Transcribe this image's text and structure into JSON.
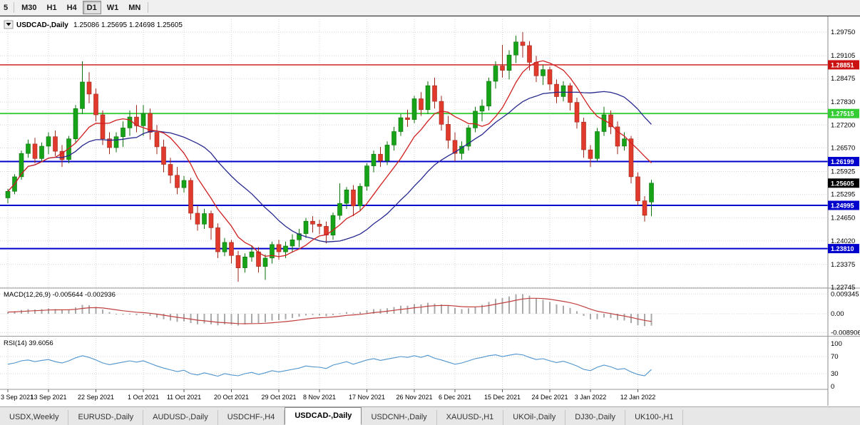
{
  "toolbar": {
    "buttons": [
      {
        "label": "5",
        "active": false
      },
      {
        "label": "M30",
        "active": false
      },
      {
        "label": "H1",
        "active": false
      },
      {
        "label": "H4",
        "active": false
      },
      {
        "label": "D1",
        "active": true
      },
      {
        "label": "W1",
        "active": false
      },
      {
        "label": "MN",
        "active": false
      }
    ]
  },
  "chart": {
    "header": {
      "symbol": "USDCAD-,Daily",
      "ohlc": "1.25086 1.25695 1.24698 1.25605"
    },
    "price_axis_labels": [
      "1.29750",
      "1.29105",
      "1.28475",
      "1.27830",
      "1.27200",
      "1.26570",
      "1.25925",
      "1.25295",
      "1.24650",
      "1.24020",
      "1.23375",
      "1.22745"
    ],
    "levels": [
      {
        "label": "1.28851",
        "price": 1.28851,
        "color": "#cc1111",
        "line": true,
        "width": 1.4
      },
      {
        "label": "1.27515",
        "price": 1.27515,
        "color": "#33cc33",
        "line": true,
        "width": 1.8
      },
      {
        "label": "1.26199",
        "price": 1.26199,
        "color": "#0000cc",
        "line": true,
        "width": 2
      },
      {
        "label": "1.25605",
        "price": 1.25605,
        "color": "#000000",
        "line": false,
        "width": 0
      },
      {
        "label": "1.24995",
        "price": 1.24995,
        "color": "#0000cc",
        "line": true,
        "width": 2
      },
      {
        "label": "1.23810",
        "price": 1.2381,
        "color": "#0000cc",
        "line": true,
        "width": 2
      }
    ],
    "colors": {
      "up": "#17a317",
      "up_stroke": "#0c720c",
      "down": "#e13a2c",
      "down_stroke": "#9e271c",
      "ma_fast": "#d02020",
      "ma_slow": "#28288f",
      "grid": "#d6d6d6",
      "macd_hist": "#a9a9a9",
      "macd_signal": "#c04040",
      "rsi": "#4f94cd",
      "separator": "#9a9a9a",
      "axis_border": "#888888"
    }
  },
  "chart_data": {
    "type": "candlestick",
    "symbol": "USDCAD-,Daily",
    "ohlc_current": {
      "open": "1.25086",
      "high": "1.25695",
      "low": "1.24698",
      "close": "1.25605"
    },
    "price_axis_range": [
      1.22745,
      1.2975
    ],
    "candles": [
      [
        1.252,
        1.2545,
        1.2505,
        1.2538
      ],
      [
        1.2538,
        1.2585,
        1.253,
        1.2578
      ],
      [
        1.2578,
        1.265,
        1.257,
        1.2642
      ],
      [
        1.2642,
        1.268,
        1.263,
        1.2668
      ],
      [
        1.2668,
        1.2685,
        1.2615,
        1.2628
      ],
      [
        1.2628,
        1.2672,
        1.2618,
        1.2662
      ],
      [
        1.2662,
        1.27,
        1.264,
        1.2688
      ],
      [
        1.2688,
        1.2705,
        1.2635,
        1.2648
      ],
      [
        1.2648,
        1.2665,
        1.2605,
        1.2625
      ],
      [
        1.2625,
        1.269,
        1.2615,
        1.2682
      ],
      [
        1.2682,
        1.2775,
        1.267,
        1.2765
      ],
      [
        1.2765,
        1.2895,
        1.275,
        1.2838
      ],
      [
        1.2838,
        1.2865,
        1.278,
        1.2805
      ],
      [
        1.2805,
        1.282,
        1.273,
        1.2748
      ],
      [
        1.2748,
        1.276,
        1.2665,
        1.2682
      ],
      [
        1.2682,
        1.27,
        1.264,
        1.2658
      ],
      [
        1.2658,
        1.27,
        1.2645,
        1.2688
      ],
      [
        1.2688,
        1.273,
        1.266,
        1.2712
      ],
      [
        1.2712,
        1.276,
        1.269,
        1.2742
      ],
      [
        1.2742,
        1.2775,
        1.27,
        1.2718
      ],
      [
        1.2718,
        1.2775,
        1.269,
        1.2752
      ],
      [
        1.2752,
        1.2765,
        1.268,
        1.27
      ],
      [
        1.27,
        1.272,
        1.264,
        1.266
      ],
      [
        1.266,
        1.268,
        1.259,
        1.2612
      ],
      [
        1.2612,
        1.263,
        1.256,
        1.2582
      ],
      [
        1.2582,
        1.2605,
        1.253,
        1.2548
      ],
      [
        1.2548,
        1.258,
        1.2535,
        1.2568
      ],
      [
        1.2568,
        1.2575,
        1.246,
        1.2478
      ],
      [
        1.2478,
        1.25,
        1.243,
        1.2448
      ],
      [
        1.2448,
        1.249,
        1.2435,
        1.2477
      ],
      [
        1.2477,
        1.2485,
        1.2405,
        1.2438
      ],
      [
        1.2438,
        1.245,
        1.2355,
        1.2372
      ],
      [
        1.2372,
        1.241,
        1.236,
        1.2398
      ],
      [
        1.2398,
        1.2405,
        1.234,
        1.2362
      ],
      [
        1.2362,
        1.2375,
        1.229,
        1.2328
      ],
      [
        1.2328,
        1.2368,
        1.2315,
        1.2358
      ],
      [
        1.2358,
        1.239,
        1.2345,
        1.2372
      ],
      [
        1.2372,
        1.2385,
        1.2315,
        1.2332
      ],
      [
        1.2332,
        1.2365,
        1.2295,
        1.2355
      ],
      [
        1.2355,
        1.24,
        1.234,
        1.2392
      ],
      [
        1.2392,
        1.2405,
        1.235,
        1.2372
      ],
      [
        1.2372,
        1.24,
        1.2355,
        1.2388
      ],
      [
        1.2388,
        1.242,
        1.237,
        1.2405
      ],
      [
        1.2405,
        1.2435,
        1.2385,
        1.2422
      ],
      [
        1.2422,
        1.2465,
        1.241,
        1.2456
      ],
      [
        1.2456,
        1.247,
        1.2425,
        1.2448
      ],
      [
        1.2448,
        1.246,
        1.242,
        1.2442
      ],
      [
        1.2442,
        1.2455,
        1.2395,
        1.2418
      ],
      [
        1.2418,
        1.248,
        1.2405,
        1.2472
      ],
      [
        1.2472,
        1.256,
        1.246,
        1.2505
      ],
      [
        1.2505,
        1.255,
        1.249,
        1.2542
      ],
      [
        1.2542,
        1.2555,
        1.247,
        1.2498
      ],
      [
        1.2498,
        1.256,
        1.2485,
        1.2552
      ],
      [
        1.2552,
        1.2615,
        1.254,
        1.2608
      ],
      [
        1.2608,
        1.265,
        1.259,
        1.264
      ],
      [
        1.264,
        1.266,
        1.2605,
        1.2622
      ],
      [
        1.2622,
        1.2675,
        1.261,
        1.2665
      ],
      [
        1.2665,
        1.2715,
        1.265,
        1.2702
      ],
      [
        1.2702,
        1.275,
        1.269,
        1.274
      ],
      [
        1.274,
        1.2762,
        1.2715,
        1.2735
      ],
      [
        1.2735,
        1.28,
        1.2725,
        1.2792
      ],
      [
        1.2792,
        1.281,
        1.2745,
        1.2762
      ],
      [
        1.2762,
        1.284,
        1.275,
        1.2828
      ],
      [
        1.2828,
        1.285,
        1.2765,
        1.2785
      ],
      [
        1.2785,
        1.28,
        1.2705,
        1.2722
      ],
      [
        1.2722,
        1.2745,
        1.2655,
        1.2678
      ],
      [
        1.2678,
        1.27,
        1.262,
        1.2642
      ],
      [
        1.2642,
        1.2675,
        1.2625,
        1.2662
      ],
      [
        1.2662,
        1.272,
        1.265,
        1.2712
      ],
      [
        1.2712,
        1.277,
        1.27,
        1.2758
      ],
      [
        1.2758,
        1.279,
        1.273,
        1.2772
      ],
      [
        1.2772,
        1.285,
        1.276,
        1.284
      ],
      [
        1.284,
        1.2895,
        1.282,
        1.2882
      ],
      [
        1.2882,
        1.294,
        1.285,
        1.287
      ],
      [
        1.287,
        1.2925,
        1.2845,
        1.2912
      ],
      [
        1.2912,
        1.2965,
        1.289,
        1.2948
      ],
      [
        1.2948,
        1.2975,
        1.2905,
        1.2938
      ],
      [
        1.2938,
        1.295,
        1.287,
        1.2892
      ],
      [
        1.2892,
        1.291,
        1.2838,
        1.2855
      ],
      [
        1.2855,
        1.2885,
        1.283,
        1.2872
      ],
      [
        1.2872,
        1.288,
        1.2815,
        1.2832
      ],
      [
        1.2832,
        1.2845,
        1.278,
        1.2798
      ],
      [
        1.2798,
        1.284,
        1.2785,
        1.2828
      ],
      [
        1.2828,
        1.2835,
        1.276,
        1.2782
      ],
      [
        1.2782,
        1.2795,
        1.271,
        1.2728
      ],
      [
        1.2728,
        1.274,
        1.263,
        1.2652
      ],
      [
        1.2652,
        1.2665,
        1.2605,
        1.2628
      ],
      [
        1.2628,
        1.2712,
        1.262,
        1.2702
      ],
      [
        1.2702,
        1.277,
        1.269,
        1.2748
      ],
      [
        1.2748,
        1.276,
        1.2695,
        1.2715
      ],
      [
        1.2715,
        1.273,
        1.264,
        1.2662
      ],
      [
        1.2662,
        1.27,
        1.265,
        1.2682
      ],
      [
        1.2682,
        1.269,
        1.256,
        1.2578
      ],
      [
        1.2578,
        1.259,
        1.25,
        1.2512
      ],
      [
        1.2512,
        1.2525,
        1.2455,
        1.2472
      ],
      [
        1.25086,
        1.25695,
        1.24698,
        1.25605
      ]
    ],
    "x_axis_labels": [
      {
        "i": 0,
        "label": "3 Sep 2021"
      },
      {
        "i": 6,
        "label": "13 Sep 2021"
      },
      {
        "i": 13,
        "label": "22 Sep 2021"
      },
      {
        "i": 20,
        "label": "1 Oct 2021"
      },
      {
        "i": 26,
        "label": "11 Oct 2021"
      },
      {
        "i": 33,
        "label": "20 Oct 2021"
      },
      {
        "i": 40,
        "label": "29 Oct 2021"
      },
      {
        "i": 46,
        "label": "8 Nov 2021"
      },
      {
        "i": 53,
        "label": "17 Nov 2021"
      },
      {
        "i": 60,
        "label": "26 Nov 2021"
      },
      {
        "i": 66,
        "label": "6 Dec 2021"
      },
      {
        "i": 73,
        "label": "15 Dec 2021"
      },
      {
        "i": 80,
        "label": "24 Dec 2021"
      },
      {
        "i": 86,
        "label": "3 Jan 2022"
      },
      {
        "i": 93,
        "label": "12 Jan 2022"
      }
    ],
    "moving_averages": {
      "fast_period": 8,
      "slow_period": 20
    },
    "indicators": {
      "macd": {
        "label": "MACD(12,26,9) -0.005644 -0.002936",
        "signal_period": 9,
        "axis_labels": [
          {
            "v": 0.009345,
            "label": "0.009345"
          },
          {
            "v": 0,
            "label": "0.00"
          },
          {
            "v": -0.008906,
            "label": "-0.008906"
          }
        ],
        "values": [
          0.0008,
          0.0012,
          0.0018,
          0.0022,
          0.002,
          0.0022,
          0.0025,
          0.0022,
          0.0018,
          0.002,
          0.003,
          0.0042,
          0.004,
          0.0032,
          0.002,
          0.0008,
          0.0,
          -0.0004,
          -0.0002,
          -0.0006,
          -0.0004,
          -0.001,
          -0.0018,
          -0.0026,
          -0.0032,
          -0.0038,
          -0.0036,
          -0.0044,
          -0.005,
          -0.0046,
          -0.005,
          -0.0055,
          -0.005,
          -0.0052,
          -0.0056,
          -0.005,
          -0.0044,
          -0.0045,
          -0.004,
          -0.0032,
          -0.003,
          -0.0026,
          -0.002,
          -0.0014,
          -0.0008,
          -0.0006,
          -0.0008,
          -0.0012,
          -0.0006,
          0.0002,
          0.0008,
          0.0004,
          0.0008,
          0.0016,
          0.0022,
          0.0022,
          0.0026,
          0.0032,
          0.0038,
          0.0038,
          0.0046,
          0.0044,
          0.0052,
          0.0048,
          0.0044,
          0.0038,
          0.0028,
          0.0022,
          0.0026,
          0.0034,
          0.0042,
          0.0056,
          0.007,
          0.0074,
          0.0082,
          0.0092,
          0.0093,
          0.0086,
          0.0074,
          0.0066,
          0.0056,
          0.0044,
          0.0038,
          0.0028,
          0.0012,
          -0.001,
          -0.0026,
          -0.0026,
          -0.0018,
          -0.002,
          -0.003,
          -0.0032,
          -0.0044,
          -0.0054,
          -0.0058,
          -0.005644
        ]
      },
      "rsi": {
        "label": "RSI(14) 39.6056",
        "axis_labels": [
          {
            "v": 100,
            "label": "100"
          },
          {
            "v": 70,
            "label": "70"
          },
          {
            "v": 30,
            "label": "30"
          },
          {
            "v": 0,
            "label": "0"
          }
        ],
        "level_lines": [
          70,
          30
        ],
        "values": [
          52,
          55,
          60,
          62,
          58,
          61,
          63,
          58,
          55,
          60,
          67,
          72,
          68,
          62,
          55,
          51,
          54,
          57,
          60,
          57,
          60,
          54,
          48,
          43,
          39,
          35,
          38,
          30,
          27,
          32,
          28,
          24,
          30,
          27,
          25,
          30,
          33,
          28,
          32,
          37,
          34,
          37,
          40,
          43,
          48,
          46,
          45,
          42,
          50,
          54,
          58,
          52,
          57,
          62,
          65,
          61,
          64,
          67,
          70,
          68,
          72,
          68,
          73,
          66,
          62,
          57,
          52,
          55,
          60,
          65,
          68,
          72,
          74,
          70,
          73,
          76,
          74,
          68,
          63,
          65,
          60,
          56,
          59,
          54,
          48,
          40,
          37,
          45,
          50,
          46,
          40,
          42,
          34,
          28,
          25,
          39.6
        ]
      }
    }
  },
  "tabbar": {
    "tabs": [
      {
        "label": "USDX,Weekly",
        "active": false
      },
      {
        "label": "EURUSD-,Daily",
        "active": false
      },
      {
        "label": "AUDUSD-,Daily",
        "active": false
      },
      {
        "label": "USDCHF-,H4",
        "active": false
      },
      {
        "label": "USDCAD-,Daily",
        "active": true
      },
      {
        "label": "USDCNH-,Daily",
        "active": false
      },
      {
        "label": "XAUUSD-,H1",
        "active": false
      },
      {
        "label": "UKOil-,Daily",
        "active": false
      },
      {
        "label": "DJ30-,Daily",
        "active": false
      },
      {
        "label": "UK100-,H1",
        "active": false
      }
    ]
  }
}
